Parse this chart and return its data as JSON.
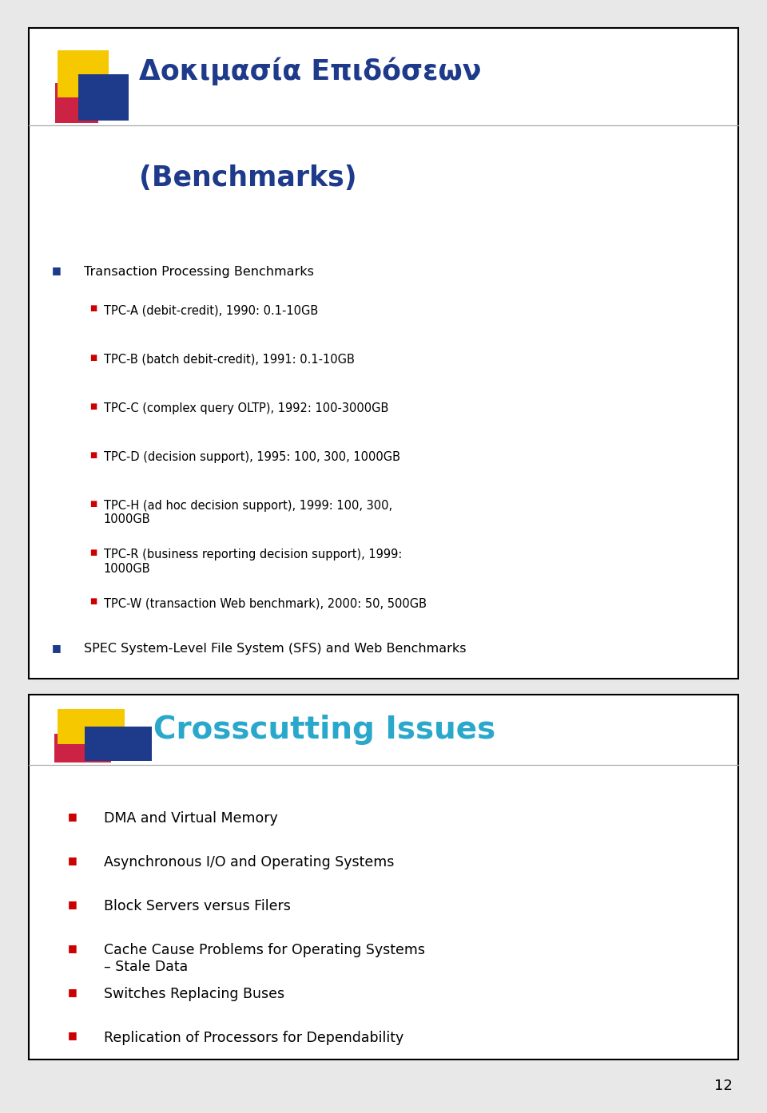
{
  "slide1": {
    "title_line1": "Δοκιμασία Επιδόσεων",
    "title_line2": "(Benchmarks)",
    "title_color": "#1e3a8a",
    "l1_bullet_color": "#1e3a8a",
    "l2_bullet_color": "#cc0000",
    "bullet1_text": "Transaction Processing Benchmarks",
    "subbullets": [
      "TPC-A (debit-credit), 1990: 0.1-10GB",
      "TPC-B (batch debit-credit), 1991: 0.1-10GB",
      "TPC-C (complex query OLTP), 1992: 100-3000GB",
      "TPC-D (decision support), 1995: 100, 300, 1000GB",
      "TPC-H (ad hoc decision support), 1999: 100, 300,\n1000GB",
      "TPC-R (business reporting decision support), 1999:\n1000GB",
      "TPC-W (transaction Web benchmark), 2000: 50, 500GB"
    ],
    "bullet2_text": "SPEC System-Level File System (SFS) and Web Benchmarks"
  },
  "slide2": {
    "title": "Crosscutting Issues",
    "title_color": "#29a8cc",
    "bullet_color": "#cc0000",
    "bullets": [
      "DMA and Virtual Memory",
      "Asynchronous I/O and Operating Systems",
      "Block Servers versus Filers",
      "Cache Cause Problems for Operating Systems\n– Stale Data",
      "Switches Replacing Buses",
      "Replication of Processors for Dependability"
    ]
  },
  "page_num": "12",
  "bg_color": "#e8e8e8",
  "slide_bg": "#ffffff",
  "border_color": "#000000",
  "text_color": "#000000",
  "separator_color": "#aaaaaa",
  "logo_yellow": "#f5c800",
  "logo_blue": "#1e3a8a",
  "logo_red": "#cc2244"
}
